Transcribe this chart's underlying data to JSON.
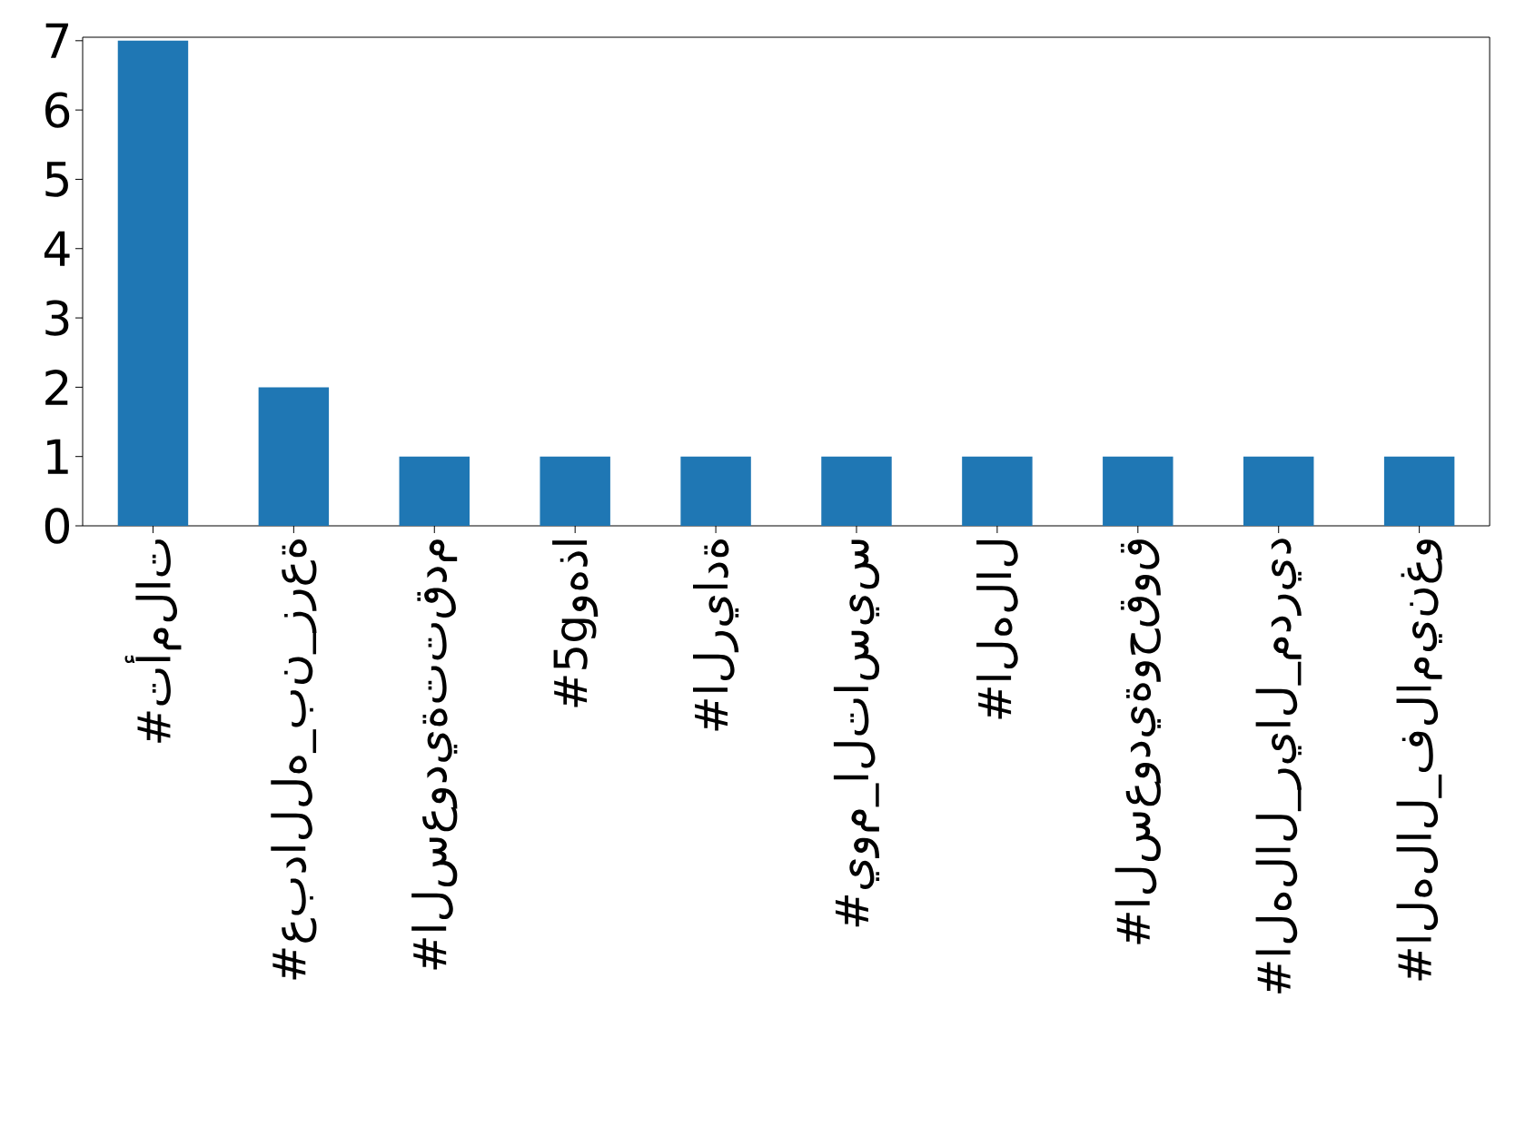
{
  "chart_data": {
    "type": "bar",
    "categories": [
      "#تأملات",
      "#عبدالله_بن_زرعة",
      "#السعوديةتتقدم",
      "#5gوهذا",
      "#الريادة",
      "#يوم_التاسيس",
      "#الهلال",
      "#السعوديةوحقوق",
      "#الهلال_ريال_مدريد",
      "#الهلال_فلامينغو"
    ],
    "values": [
      7,
      2,
      1,
      1,
      1,
      1,
      1,
      1,
      1,
      1
    ],
    "color": "#1f77b4",
    "ylim": [
      0,
      7.05
    ],
    "yticks": [
      0,
      1,
      2,
      3,
      4,
      5,
      6,
      7
    ]
  }
}
